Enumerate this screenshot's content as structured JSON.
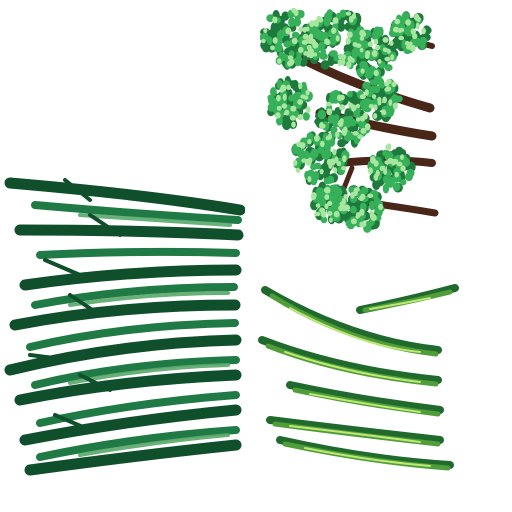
{
  "atlas": {
    "background": "#ffffff",
    "sprites": [
      {
        "id": "branch",
        "kind": "leafy-branch",
        "colors": {
          "bark": "#4a2618",
          "leaf_dark": "#1e7a3c",
          "leaf_mid": "#37b05a",
          "leaf_light": "#a8e6a0"
        }
      },
      {
        "id": "dark-grass",
        "kind": "grass-blades",
        "colors": {
          "deep": "#0f4f2c",
          "mid": "#1f7a45",
          "light": "#58a86a"
        }
      },
      {
        "id": "light-grass",
        "kind": "grass-blades",
        "colors": {
          "deep": "#1f6a2c",
          "mid": "#4f9e3a",
          "light": "#c6ec78"
        }
      }
    ]
  }
}
